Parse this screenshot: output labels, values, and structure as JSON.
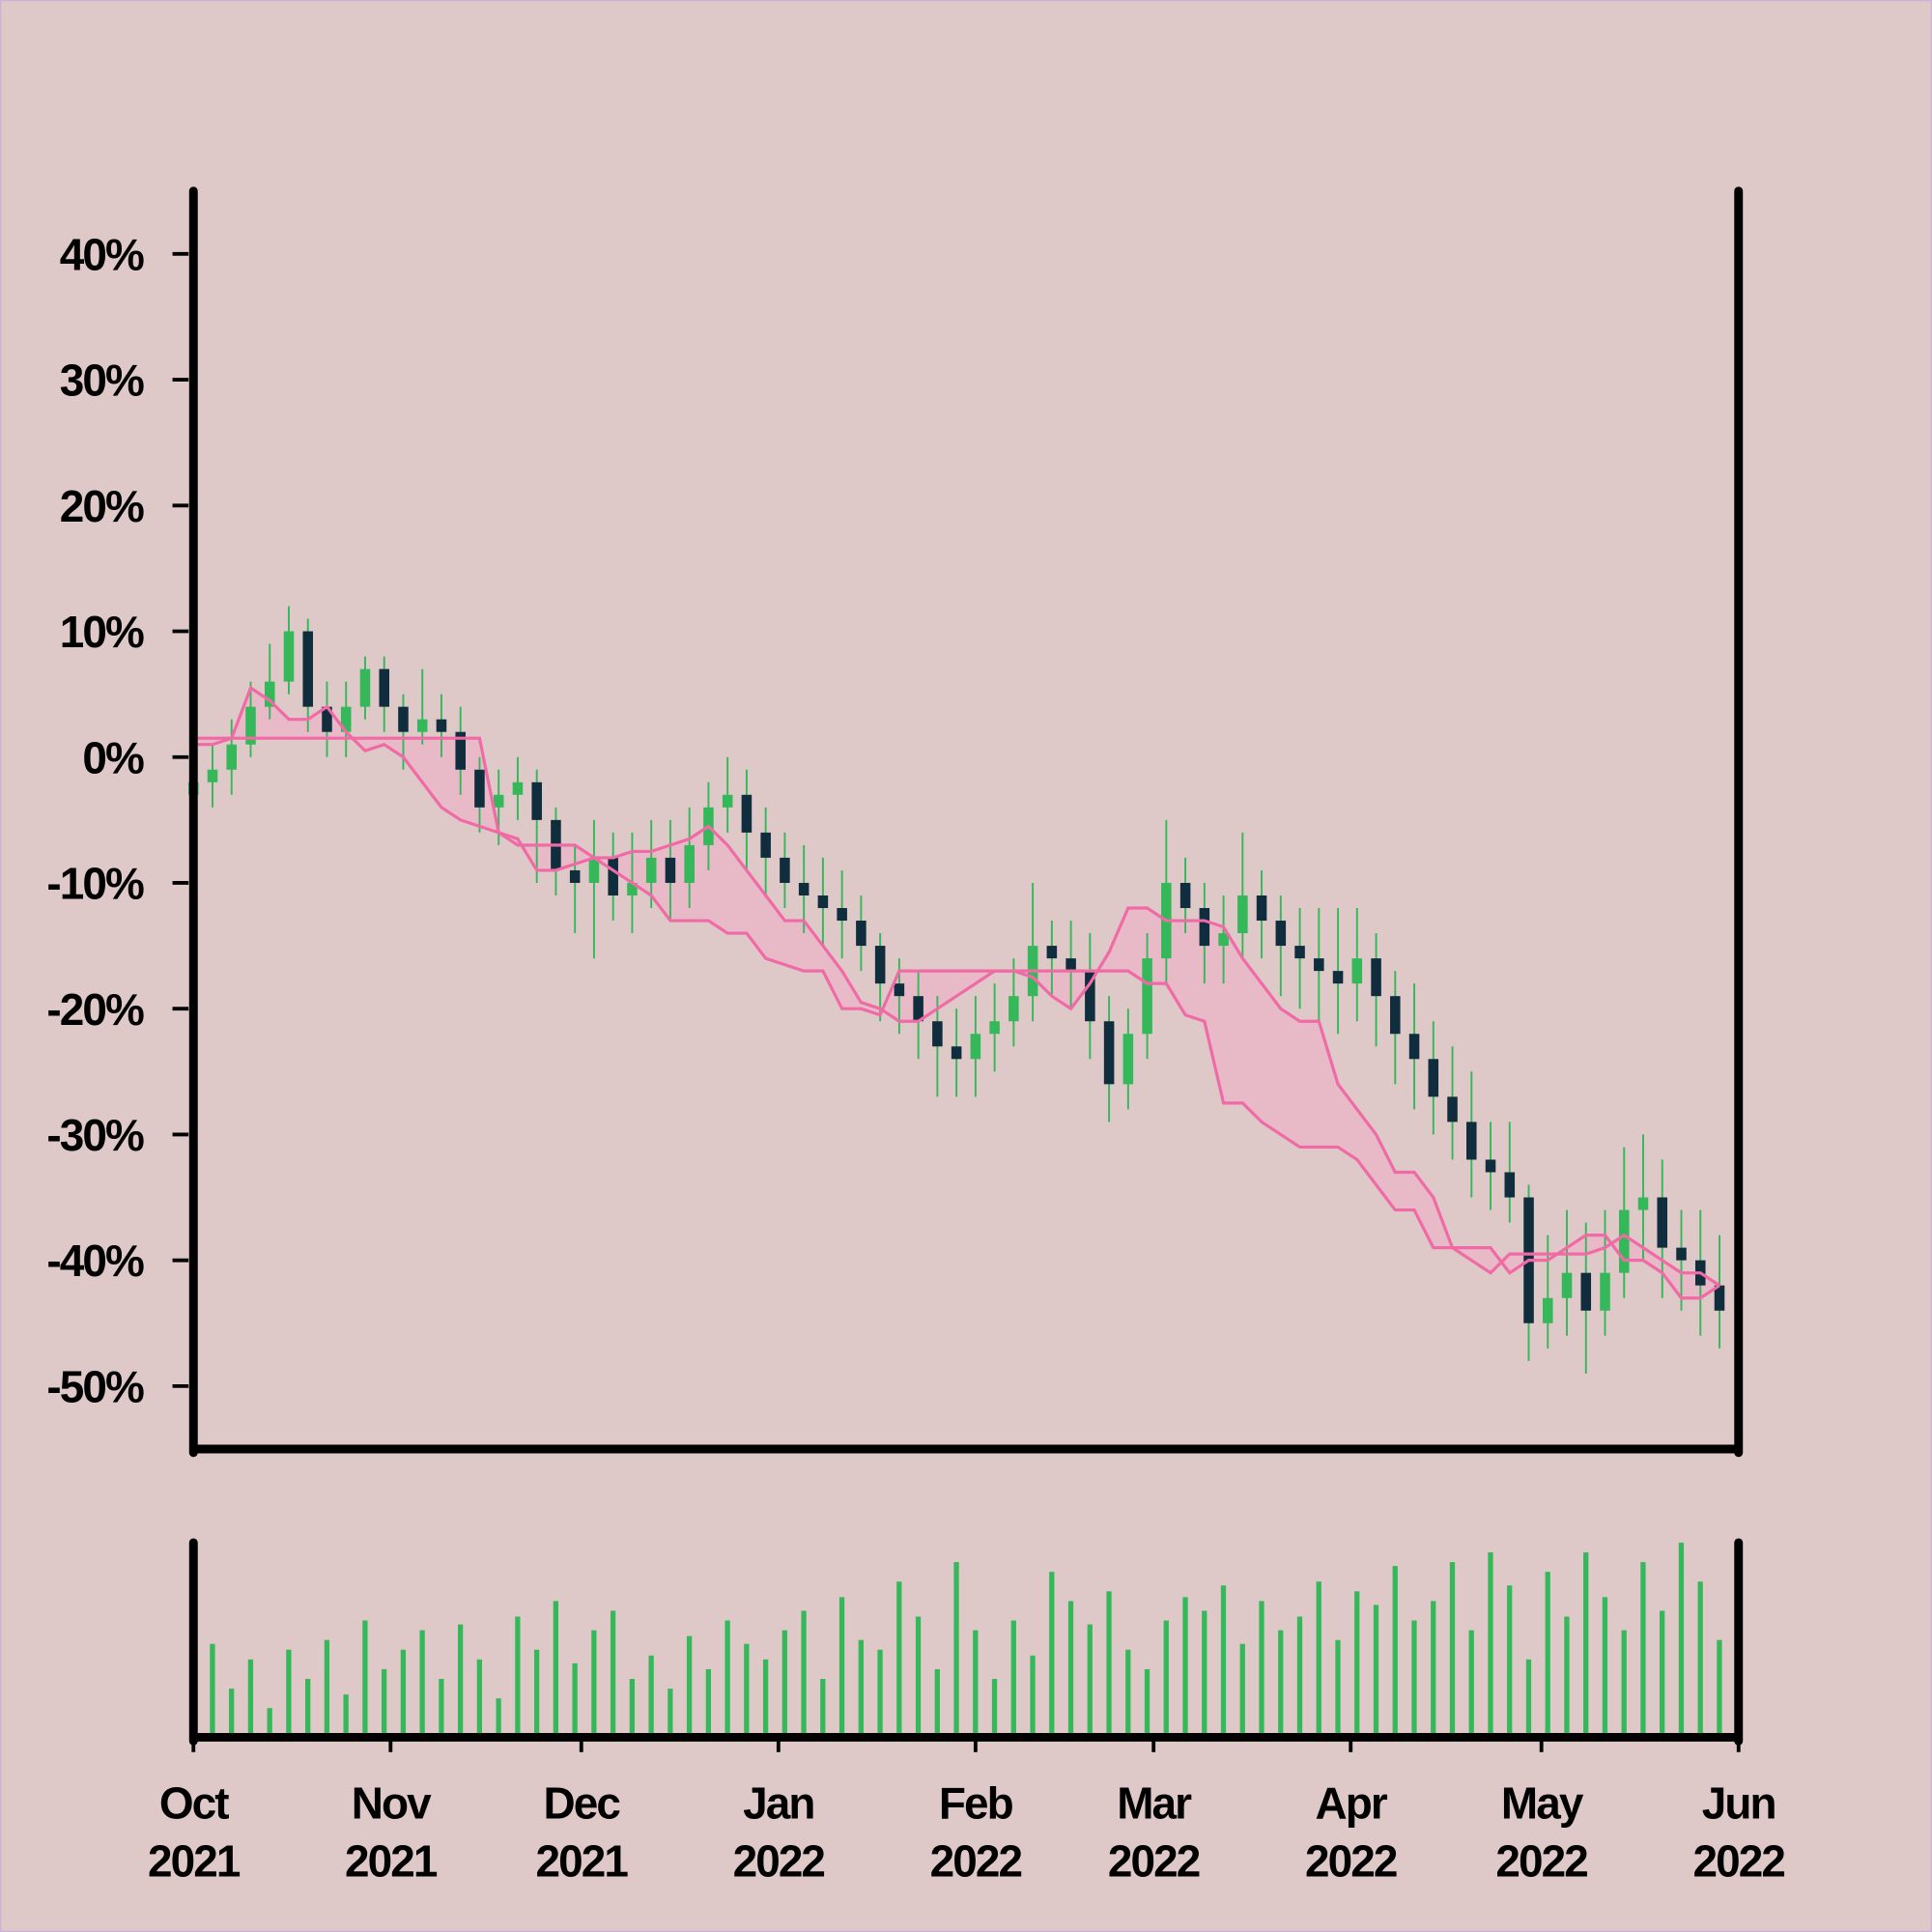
{
  "chart_data": {
    "type": "candlestick",
    "x": [
      "2021-10-01",
      "2021-10-04",
      "2021-10-07",
      "2021-10-10",
      "2021-10-13",
      "2021-10-16",
      "2021-10-19",
      "2021-10-22",
      "2021-10-25",
      "2021-10-28",
      "2021-10-31",
      "2021-11-03",
      "2021-11-06",
      "2021-11-09",
      "2021-11-12",
      "2021-11-15",
      "2021-11-18",
      "2021-11-21",
      "2021-11-24",
      "2021-11-27",
      "2021-11-30",
      "2021-12-03",
      "2021-12-06",
      "2021-12-09",
      "2021-12-12",
      "2021-12-15",
      "2021-12-18",
      "2021-12-21",
      "2021-12-24",
      "2021-12-27",
      "2021-12-30",
      "2022-01-02",
      "2022-01-05",
      "2022-01-08",
      "2022-01-11",
      "2022-01-14",
      "2022-01-17",
      "2022-01-20",
      "2022-01-23",
      "2022-01-26",
      "2022-01-29",
      "2022-02-01",
      "2022-02-04",
      "2022-02-07",
      "2022-02-10",
      "2022-02-13",
      "2022-02-16",
      "2022-02-19",
      "2022-02-22",
      "2022-02-25",
      "2022-02-28",
      "2022-03-03",
      "2022-03-06",
      "2022-03-09",
      "2022-03-12",
      "2022-03-15",
      "2022-03-18",
      "2022-03-21",
      "2022-03-24",
      "2022-03-27",
      "2022-03-30",
      "2022-04-02",
      "2022-04-05",
      "2022-04-08",
      "2022-04-11",
      "2022-04-14",
      "2022-04-17",
      "2022-04-20",
      "2022-04-23",
      "2022-04-26",
      "2022-04-29",
      "2022-05-02",
      "2022-05-05",
      "2022-05-08",
      "2022-05-11",
      "2022-05-14",
      "2022-05-17",
      "2022-05-20",
      "2022-05-23",
      "2022-05-26",
      "2022-05-29"
    ],
    "open": [
      -3,
      -2,
      -1,
      1,
      4,
      6,
      10,
      4,
      2,
      4,
      7,
      4,
      2,
      3,
      2,
      -1,
      -4,
      -3,
      -2,
      -5,
      -9,
      -10,
      -8,
      -11,
      -10,
      -8,
      -10,
      -7,
      -4,
      -3,
      -6,
      -8,
      -10,
      -11,
      -12,
      -13,
      -15,
      -18,
      -19,
      -21,
      -23,
      -24,
      -22,
      -21,
      -19,
      -15,
      -16,
      -17,
      -21,
      -26,
      -22,
      -16,
      -10,
      -12,
      -15,
      -14,
      -11,
      -13,
      -15,
      -16,
      -17,
      -18,
      -16,
      -19,
      -22,
      -24,
      -27,
      -29,
      -32,
      -33,
      -35,
      -45,
      -43,
      -41,
      -44,
      -41,
      -36,
      -35,
      -39,
      -40,
      -42
    ],
    "high": [
      0,
      1,
      3,
      6,
      9,
      12,
      11,
      6,
      6,
      8,
      8,
      5,
      7,
      5,
      4,
      0,
      -1,
      0,
      -1,
      -4,
      -7,
      -5,
      -6,
      -6,
      -5,
      -5,
      -4,
      -2,
      0,
      -1,
      -4,
      -6,
      -7,
      -8,
      -9,
      -11,
      -14,
      -16,
      -17,
      -19,
      -20,
      -19,
      -18,
      -16,
      -10,
      -13,
      -13,
      -14,
      -19,
      -20,
      -14,
      -5,
      -8,
      -10,
      -11,
      -6,
      -9,
      -11,
      -12,
      -12,
      -12,
      -12,
      -14,
      -17,
      -18,
      -21,
      -23,
      -25,
      -29,
      -29,
      -34,
      -38,
      -36,
      -37,
      -36,
      -31,
      -30,
      -32,
      -36,
      -36,
      -38
    ],
    "low": [
      -5,
      -4,
      -3,
      0,
      3,
      5,
      2,
      0,
      0,
      3,
      2,
      -1,
      1,
      0,
      -3,
      -6,
      -7,
      -5,
      -10,
      -11,
      -14,
      -16,
      -13,
      -14,
      -12,
      -13,
      -12,
      -9,
      -6,
      -9,
      -11,
      -12,
      -14,
      -15,
      -16,
      -17,
      -21,
      -22,
      -24,
      -27,
      -27,
      -27,
      -25,
      -23,
      -21,
      -19,
      -20,
      -24,
      -29,
      -28,
      -24,
      -18,
      -14,
      -18,
      -18,
      -16,
      -16,
      -19,
      -20,
      -21,
      -22,
      -21,
      -23,
      -26,
      -28,
      -30,
      -32,
      -35,
      -36,
      -37,
      -48,
      -47,
      -46,
      -49,
      -46,
      -43,
      -40,
      -43,
      -44,
      -46,
      -47
    ],
    "close": [
      -2,
      -1,
      1,
      4,
      6,
      10,
      4,
      2,
      4,
      7,
      4,
      2,
      3,
      2,
      -1,
      -4,
      -3,
      -2,
      -5,
      -9,
      -10,
      -8,
      -11,
      -10,
      -8,
      -10,
      -7,
      -4,
      -3,
      -6,
      -8,
      -10,
      -11,
      -12,
      -13,
      -15,
      -18,
      -19,
      -21,
      -23,
      -24,
      -22,
      -21,
      -19,
      -15,
      -16,
      -17,
      -21,
      -26,
      -22,
      -16,
      -10,
      -12,
      -15,
      -14,
      -11,
      -13,
      -15,
      -16,
      -17,
      -18,
      -16,
      -19,
      -22,
      -24,
      -27,
      -29,
      -32,
      -33,
      -35,
      -45,
      -43,
      -41,
      -44,
      -41,
      -36,
      -35,
      -39,
      -40,
      -42,
      -44
    ],
    "up_color": "#34b85a",
    "down_color": "#0f2d3c",
    "ylim": [
      -55,
      45
    ],
    "yticks": [
      {
        "value": -50,
        "label": "-50%"
      },
      {
        "value": -40,
        "label": "-40%"
      },
      {
        "value": -30,
        "label": "-30%"
      },
      {
        "value": -20,
        "label": "-20%"
      },
      {
        "value": -10,
        "label": "-10%"
      },
      {
        "value": 0,
        "label": "0%"
      },
      {
        "value": 10,
        "label": "10%"
      },
      {
        "value": 20,
        "label": "20%"
      },
      {
        "value": 30,
        "label": "30%"
      },
      {
        "value": 40,
        "label": "40%"
      }
    ],
    "xlim": [
      "2021-10-01",
      "2022-06-01"
    ],
    "xticks": [
      {
        "value": "2021-10-01",
        "label": [
          "Oct",
          "2021"
        ]
      },
      {
        "value": "2021-11-01",
        "label": [
          "Nov",
          "2021"
        ]
      },
      {
        "value": "2021-12-01",
        "label": [
          "Dec",
          "2021"
        ]
      },
      {
        "value": "2022-01-01",
        "label": [
          "Jan",
          "2022"
        ]
      },
      {
        "value": "2022-02-01",
        "label": [
          "Feb",
          "2022"
        ]
      },
      {
        "value": "2022-03-01",
        "label": [
          "Mar",
          "2022"
        ]
      },
      {
        "value": "2022-04-01",
        "label": [
          "Apr",
          "2022"
        ]
      },
      {
        "value": "2022-05-01",
        "label": [
          "May",
          "2022"
        ]
      },
      {
        "value": "2022-06-01",
        "label": [
          "Jun",
          "2022"
        ]
      }
    ],
    "lines": [
      {
        "color": "#f06aa5",
        "values": [
          1.5,
          1.5,
          1.5,
          1.5,
          1.5,
          1.5,
          1.5,
          1.5,
          1.5,
          1.5,
          1.5,
          1.5,
          1.5,
          1.5,
          1.5,
          1.5,
          -6,
          -7,
          -7,
          -7,
          -7,
          -8,
          -9,
          -10,
          -11,
          -13,
          -13,
          -13,
          -14,
          -14,
          -16,
          -16.5,
          -17,
          -17,
          -20,
          -20,
          -20.5,
          -17,
          -17,
          -17,
          -17,
          -17,
          -17,
          -17,
          -17,
          -17,
          -17,
          -17,
          -17,
          -17,
          -18,
          -18,
          -20.5,
          -21,
          -27.5,
          -27.5,
          -29,
          -30,
          -31,
          -31,
          -31,
          -32,
          -34,
          -36,
          -36,
          -39,
          -39,
          -40,
          -41,
          -39.5,
          -39.5,
          -39.5,
          -39.5,
          -39.5,
          -39,
          -38,
          -39,
          -40,
          -41,
          -41,
          -42
        ]
      },
      {
        "color": "#f06aa5",
        "values": [
          1,
          1,
          1.5,
          5.5,
          4.5,
          3,
          3,
          4,
          2,
          0.5,
          1,
          0,
          -2,
          -4,
          -5,
          -5.5,
          -6,
          -6.5,
          -9,
          -9,
          -8.5,
          -8,
          -8,
          -7.5,
          -7.5,
          -7,
          -6.5,
          -5.5,
          -7,
          -9,
          -11,
          -13,
          -13,
          -15,
          -17,
          -19.5,
          -20,
          -21,
          -21,
          -20,
          -19,
          -18,
          -17,
          -17,
          -17.5,
          -19,
          -20,
          -18,
          -15.5,
          -12,
          -12,
          -13,
          -13,
          -13,
          -13.5,
          -16,
          -18,
          -20,
          -21,
          -21,
          -26,
          -28,
          -30,
          -33,
          -33,
          -35,
          -39,
          -39,
          -39,
          -41,
          -40,
          -40,
          -39,
          -38,
          -38,
          -40,
          -40,
          -41,
          -43,
          -43,
          -42
        ]
      }
    ],
    "band_color": "#eab6c8",
    "volume": {
      "color": "#34b85a",
      "ylim": [
        0,
        100
      ],
      "values": [
        20,
        48,
        25,
        40,
        15,
        45,
        30,
        50,
        22,
        60,
        35,
        45,
        55,
        30,
        58,
        40,
        20,
        62,
        45,
        70,
        38,
        55,
        65,
        30,
        42,
        25,
        52,
        35,
        60,
        48,
        40,
        55,
        65,
        30,
        72,
        50,
        45,
        80,
        62,
        35,
        90,
        55,
        30,
        60,
        42,
        85,
        70,
        58,
        75,
        45,
        35,
        60,
        72,
        65,
        78,
        48,
        70,
        55,
        62,
        80,
        50,
        75,
        68,
        88,
        60,
        70,
        90,
        55,
        95,
        78,
        40,
        85,
        62,
        95,
        72,
        55,
        90,
        65,
        100,
        80,
        50
      ]
    }
  }
}
